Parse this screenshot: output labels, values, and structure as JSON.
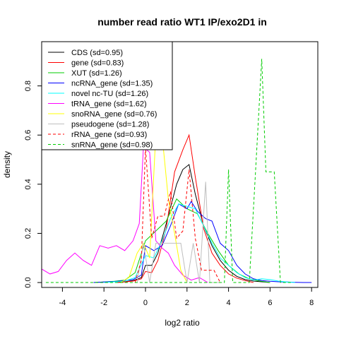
{
  "chart_data": {
    "type": "line",
    "title": "number read ratio WT1 IP/exo2D1 in",
    "xlabel": "log2 ratio",
    "ylabel": "density",
    "xlim": [
      -5,
      8.3
    ],
    "ylim": [
      -0.02,
      0.98
    ],
    "xticks": [
      -4,
      -2,
      0,
      2,
      4,
      6,
      8
    ],
    "yticks": [
      0.0,
      0.2,
      0.4,
      0.6,
      0.8
    ],
    "grid": false,
    "legend_position": "top-left",
    "series": [
      {
        "name": "CDS (sd=0.95)",
        "color": "#000000",
        "dash": "solid",
        "x": [
          -1.4,
          -1.0,
          -0.6,
          -0.2,
          0.0,
          0.3,
          0.6,
          1.0,
          1.5,
          1.8,
          2.1,
          2.4,
          2.8,
          3.2,
          3.6,
          4.0,
          4.4,
          4.8,
          5.2,
          5.6,
          6.0
        ],
        "y": [
          0.0,
          0.003,
          0.008,
          0.02,
          0.07,
          0.07,
          0.12,
          0.24,
          0.4,
          0.46,
          0.48,
          0.36,
          0.23,
          0.15,
          0.09,
          0.05,
          0.025,
          0.012,
          0.006,
          0.003,
          0.0
        ]
      },
      {
        "name": "gene (sd=0.83)",
        "color": "#ff0000",
        "dash": "solid",
        "x": [
          -1.4,
          -1.0,
          -0.6,
          -0.2,
          0.0,
          0.3,
          0.6,
          1.0,
          1.4,
          1.8,
          2.1,
          2.4,
          2.8,
          3.2,
          3.6,
          4.0,
          4.4,
          4.8,
          5.2
        ],
        "y": [
          0.0,
          0.002,
          0.006,
          0.015,
          0.045,
          0.04,
          0.09,
          0.22,
          0.45,
          0.54,
          0.6,
          0.43,
          0.22,
          0.12,
          0.07,
          0.035,
          0.018,
          0.008,
          0.0
        ]
      },
      {
        "name": "XUT (sd=1.26)",
        "color": "#00cc00",
        "dash": "solid",
        "x": [
          -2.5,
          -2.0,
          -1.5,
          -1.0,
          -0.5,
          0.0,
          0.5,
          1.0,
          1.5,
          2.0,
          2.5,
          3.0,
          3.5,
          4.0,
          4.5,
          5.0,
          5.5,
          6.0
        ],
        "y": [
          0.0,
          0.002,
          0.005,
          0.01,
          0.04,
          0.17,
          0.21,
          0.25,
          0.34,
          0.3,
          0.28,
          0.2,
          0.13,
          0.07,
          0.035,
          0.015,
          0.006,
          0.0
        ]
      },
      {
        "name": "ncRNA_gene (sd=1.35)",
        "color": "#0000ff",
        "dash": "solid",
        "x": [
          -2.5,
          -2.0,
          -1.5,
          -1.0,
          -0.6,
          -0.2,
          0.0,
          0.4,
          0.8,
          1.2,
          1.6,
          2.0,
          2.2,
          2.5,
          2.9,
          3.2,
          3.6,
          4.0,
          4.4,
          4.8,
          5.2,
          5.6,
          6.0,
          6.4,
          6.8,
          7.2,
          7.6,
          8.0
        ],
        "y": [
          0.0,
          0.002,
          0.004,
          0.008,
          0.012,
          0.03,
          0.15,
          0.13,
          0.15,
          0.23,
          0.32,
          0.3,
          0.33,
          0.29,
          0.26,
          0.25,
          0.16,
          0.13,
          0.07,
          0.035,
          0.015,
          0.008,
          0.005,
          0.003,
          0.002,
          0.001,
          0.0,
          0.0
        ]
      },
      {
        "name": "novel nc-TU (sd=1.26)",
        "color": "#00ffff",
        "dash": "solid",
        "x": [
          -2.0,
          -1.5,
          -1.0,
          -0.5,
          0.0,
          0.4,
          0.8,
          1.2,
          1.6,
          2.0,
          2.4,
          2.8,
          3.2,
          3.6,
          4.0,
          4.4,
          4.8,
          5.2,
          5.6,
          6.0,
          6.4,
          6.8,
          7.2
        ],
        "y": [
          0.0,
          0.003,
          0.006,
          0.02,
          0.11,
          0.1,
          0.17,
          0.26,
          0.32,
          0.31,
          0.3,
          0.23,
          0.16,
          0.1,
          0.07,
          0.04,
          0.02,
          0.01,
          0.015,
          0.012,
          0.006,
          0.002,
          0.0
        ]
      },
      {
        "name": "tRNA_gene (sd=1.62)",
        "color": "#ff00ff",
        "dash": "solid",
        "x": [
          -5.0,
          -4.6,
          -4.2,
          -3.8,
          -3.4,
          -3.0,
          -2.6,
          -2.2,
          -1.8,
          -1.4,
          -1.0,
          -0.6,
          -0.3,
          -0.1,
          0.2,
          0.5,
          0.8,
          1.1,
          1.4,
          1.8,
          2.2,
          2.6,
          3.0
        ],
        "y": [
          0.055,
          0.035,
          0.045,
          0.09,
          0.12,
          0.09,
          0.07,
          0.15,
          0.14,
          0.15,
          0.13,
          0.17,
          0.24,
          0.55,
          0.53,
          0.17,
          0.14,
          0.12,
          0.07,
          0.03,
          0.01,
          0.02,
          0.0
        ]
      },
      {
        "name": "snoRNA_gene (sd=0.76)",
        "color": "#ffff00",
        "dash": "solid",
        "x": [
          -1.2,
          -0.8,
          -0.4,
          -0.1,
          0.2,
          0.5,
          0.8,
          1.1,
          1.4,
          1.7,
          2.0
        ],
        "y": [
          0.0,
          0.02,
          0.12,
          0.16,
          0.1,
          0.61,
          0.6,
          0.34,
          0.2,
          0.05,
          0.0
        ]
      },
      {
        "name": "pseudogene (sd=1.28)",
        "color": "#bebebe",
        "dash": "solid",
        "x": [
          -0.4,
          -0.1,
          0.2,
          0.5,
          0.8,
          1.1,
          1.4,
          1.7,
          2.0,
          2.3,
          2.6,
          2.9,
          3.1,
          3.4,
          3.7
        ],
        "y": [
          0.0,
          0.16,
          0.0,
          0.16,
          0.16,
          0.16,
          0.16,
          0.16,
          0.0,
          0.16,
          0.0,
          0.41,
          0.0,
          0.0,
          0.0
        ]
      },
      {
        "name": "rRNA_gene (sd=0.93)",
        "color": "#ff0000",
        "dash": "dashed",
        "x": [
          -0.5,
          -0.2,
          0.0,
          0.3,
          0.6,
          0.9,
          1.2,
          1.5,
          1.8,
          2.1,
          2.4,
          2.7,
          3.0,
          3.3,
          3.6
        ],
        "y": [
          0.0,
          0.09,
          0.55,
          0.18,
          0.27,
          0.27,
          0.37,
          0.18,
          0.21,
          0.46,
          0.18,
          0.05,
          0.05,
          0.05,
          0.0
        ]
      },
      {
        "name": "snRNA_gene (sd=0.98)",
        "color": "#00cc00",
        "dash": "dashed",
        "x": [
          -4.8,
          3.6,
          3.8,
          4.0,
          4.2,
          4.6,
          5.0,
          5.3,
          5.6,
          5.8,
          6.0,
          6.2,
          6.5,
          6.8,
          7.0
        ],
        "y": [
          0.0,
          0.0,
          0.0,
          0.46,
          0.0,
          0.0,
          0.0,
          0.45,
          0.91,
          0.45,
          0.45,
          0.45,
          0.0,
          0.0,
          0.0
        ]
      }
    ]
  }
}
